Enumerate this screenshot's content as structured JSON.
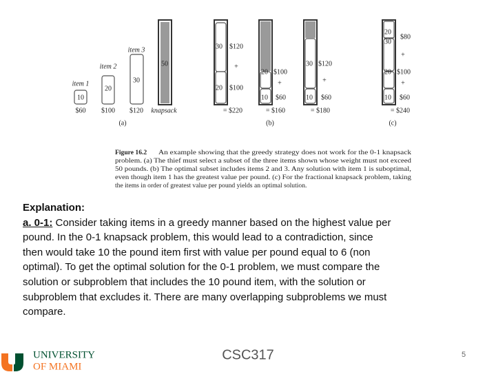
{
  "figure": {
    "panel_a": {
      "items": [
        {
          "label": "item 1",
          "weight": "10",
          "value": "$60"
        },
        {
          "label": "item 2",
          "weight": "20",
          "value": "$100"
        },
        {
          "label": "item 3",
          "weight": "30",
          "value": "$120"
        }
      ],
      "knapsack_capacity": "50",
      "knapsack_label": "knapsack",
      "tag": "(a)"
    },
    "panel_b": {
      "solutions": [
        {
          "top": {
            "weight": "30",
            "value": "$120"
          },
          "plus": "+",
          "bottom": {
            "weight": "20",
            "value": "$100"
          },
          "total": "= $220"
        },
        {
          "top": {
            "weight": "20",
            "value": "$100"
          },
          "plus": "+",
          "bottom": {
            "weight": "10",
            "value": "$60"
          },
          "total": "= $160"
        },
        {
          "top": {
            "weight": "30",
            "value": "$120"
          },
          "plus": "+",
          "bottom": {
            "weight": "10",
            "value": "$60"
          },
          "total": "= $180"
        }
      ],
      "tag": "(b)"
    },
    "panel_c": {
      "fraction": {
        "taken": "20",
        "of": "30",
        "value": "$80"
      },
      "plus_1": "+",
      "middle": {
        "weight": "20",
        "value": "$100"
      },
      "plus_2": "+",
      "bottom": {
        "weight": "10",
        "value": "$60"
      },
      "total": "= $240",
      "tag": "(c)"
    },
    "caption": {
      "label": "Figure 16.2",
      "lines": [
        "An example showing that the greedy strategy does not work for the 0-1 knapsack",
        "problem. (a) The thief must select a subset of the three items shown whose weight must not exceed",
        "50 pounds. (b) The optimal subset includes items 2 and 3. Any solution with item 1 is suboptimal,",
        "even though item 1 has the greatest value per pound. (c) For the fractional knapsack problem, taking",
        "the items in order of greatest value per pound yields an optimal solution."
      ]
    }
  },
  "explanation": {
    "heading": "Explanation:",
    "lead": "a. 0-1:",
    "lines": [
      " Consider taking items in a greedy manner based on the highest value per",
      "pound. In the 0-1 knapsack problem, this would lead to a contradiction, since",
      "then would take 10 the pound item first with value per pound equal to 6 (non",
      "optimal). To get the optimal solution for the 0-1 problem, we must compare the",
      "solution or subproblem that includes the 10 pound item, with the solution or",
      "subproblem that excludes it. There are many overlapping subproblems we must",
      "compare."
    ]
  },
  "footer": {
    "logo_line_1": "UNIVERSITY",
    "logo_line_2": "OF MIAMI",
    "course": "CSC317",
    "page": "5"
  }
}
